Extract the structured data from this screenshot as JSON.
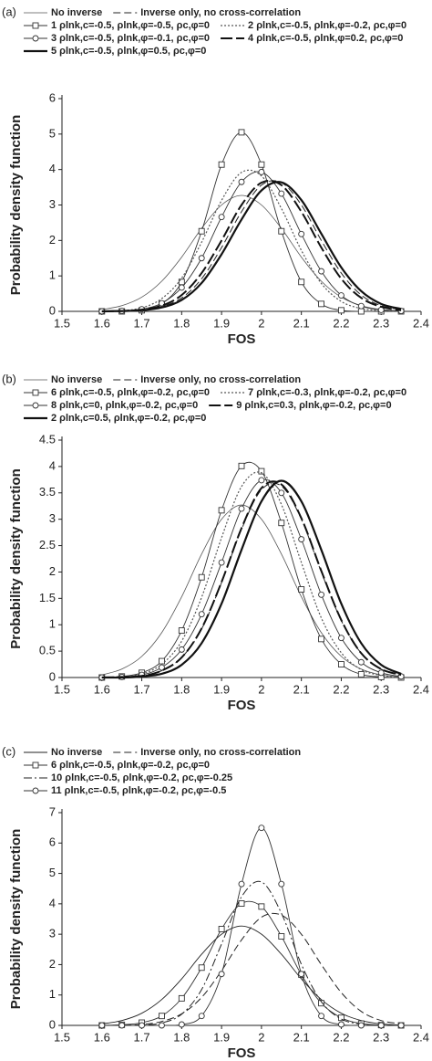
{
  "chart_data": [
    {
      "type": "line",
      "panel_label": "(a)",
      "x_label": "FOS",
      "y_label": "Probability density function",
      "x": [
        1.6,
        1.65,
        1.7,
        1.75,
        1.8,
        1.85,
        1.9,
        1.95,
        2,
        2.05,
        2.1,
        2.15,
        2.2,
        2.25,
        2.3,
        2.35
      ],
      "xlim": [
        1.5,
        2.4
      ],
      "xticks": [
        1.5,
        1.6,
        1.7,
        1.8,
        1.9,
        2,
        2.1,
        2.2,
        2.3,
        2.4
      ],
      "ylim": [
        0,
        6
      ],
      "yticks": [
        0,
        1,
        2,
        3,
        4,
        5,
        6
      ],
      "series": [
        {
          "name": "No inverse",
          "color": "#555555",
          "style": "solid",
          "width": 0.8,
          "marker": null,
          "values": [
            0.05,
            0.16,
            0.4,
            0.85,
            1.53,
            2.34,
            3,
            3.27,
            3,
            2.34,
            1.53,
            0.85,
            0.4,
            0.16,
            0.05,
            0.01
          ]
        },
        {
          "name": "Inverse only, no cross-correlation",
          "color": "#222222",
          "style": "dashed",
          "width": 1,
          "marker": null,
          "values": [
            0,
            0.01,
            0.03,
            0.13,
            0.38,
            0.92,
            1.8,
            2.81,
            3.56,
            3.63,
            3,
            2,
            1.08,
            0.46,
            0.16,
            0.05
          ]
        },
        {
          "name": "1 ρlnk,c=-0.5, ρlnk,φ=-0.5, ρc,φ=0",
          "color": "#333333",
          "style": "solid",
          "width": 0.9,
          "marker": "square",
          "values": [
            0,
            0,
            0.03,
            0.21,
            0.83,
            2.26,
            4.14,
            5.05,
            4.14,
            2.26,
            0.83,
            0.21,
            0.03,
            0,
            0,
            0
          ]
        },
        {
          "name": "2 ρlnk,c=-0.5, ρlnk,φ=-0.2, ρc,φ=0",
          "color": "#555555",
          "style": "dotted",
          "width": 1.2,
          "marker": null,
          "values": [
            0,
            0.02,
            0.1,
            0.36,
            0.94,
            1.95,
            3.13,
            3.92,
            3.82,
            2.9,
            1.72,
            0.79,
            0.28,
            0.08,
            0.02,
            0
          ]
        },
        {
          "name": "3 ρlnk,c=-0.5, ρlnk,φ=-0.1, ρc,φ=0",
          "color": "#333333",
          "style": "solid",
          "width": 0.9,
          "marker": "circle",
          "values": [
            0,
            0.01,
            0.06,
            0.23,
            0.67,
            1.5,
            2.66,
            3.65,
            3.93,
            3.32,
            2.18,
            1.13,
            0.45,
            0.15,
            0.04,
            0.01
          ]
        },
        {
          "name": "4 ρlnk,c=-0.5, ρlnk,φ=0.2, ρc,φ=0",
          "color": "#111111",
          "style": "longdash",
          "width": 2,
          "marker": null,
          "values": [
            0,
            0.01,
            0.05,
            0.16,
            0.46,
            1.08,
            2,
            3,
            3.63,
            3.56,
            2.81,
            1.8,
            0.92,
            0.38,
            0.13,
            0.03
          ]
        },
        {
          "name": "5 ρlnk,c=-0.5, ρlnk,φ=0.5, ρc,φ=0",
          "color": "#111111",
          "style": "solid",
          "width": 2.2,
          "marker": null,
          "values": [
            0,
            0.01,
            0.03,
            0.11,
            0.32,
            0.8,
            1.61,
            2.59,
            3.41,
            3.64,
            3.14,
            2.19,
            1.24,
            0.57,
            0.21,
            0.07
          ]
        }
      ]
    },
    {
      "type": "line",
      "panel_label": "(b)",
      "x_label": "FOS",
      "y_label": "Probability density function",
      "x": [
        1.6,
        1.65,
        1.7,
        1.75,
        1.8,
        1.85,
        1.9,
        1.95,
        2,
        2.05,
        2.1,
        2.15,
        2.2,
        2.25,
        2.3,
        2.35
      ],
      "xlim": [
        1.5,
        2.4
      ],
      "xticks": [
        1.5,
        1.6,
        1.7,
        1.8,
        1.9,
        2,
        2.1,
        2.2,
        2.3,
        2.4
      ],
      "ylim": [
        0,
        4.5
      ],
      "yticks": [
        0,
        0.5,
        1,
        1.5,
        2,
        2.5,
        3,
        3.5,
        4,
        4.5
      ],
      "series": [
        {
          "name": "No inverse",
          "color": "#555555",
          "style": "solid",
          "width": 0.8,
          "marker": null,
          "values": [
            0.05,
            0.16,
            0.4,
            0.85,
            1.53,
            2.34,
            3,
            3.27,
            3,
            2.34,
            1.53,
            0.85,
            0.4,
            0.16,
            0.05,
            0.01
          ]
        },
        {
          "name": "Inverse only, no cross-correlation",
          "color": "#222222",
          "style": "dashed",
          "width": 1,
          "marker": null,
          "values": [
            0,
            0.01,
            0.03,
            0.13,
            0.38,
            0.92,
            1.8,
            2.81,
            3.56,
            3.63,
            3,
            2,
            1.08,
            0.46,
            0.16,
            0.05
          ]
        },
        {
          "name": "6 ρlnk,c=-0.5, ρlnk,φ=-0.2, ρc,φ=0",
          "color": "#333333",
          "style": "solid",
          "width": 0.9,
          "marker": "square",
          "values": [
            0,
            0.02,
            0.09,
            0.31,
            0.89,
            1.9,
            3.17,
            4.01,
            3.91,
            2.93,
            1.67,
            0.73,
            0.25,
            0.06,
            0.01,
            0
          ]
        },
        {
          "name": "7 ρlnk,c=-0.3, ρlnk,φ=-0.2, ρc,φ=0",
          "color": "#555555",
          "style": "dotted",
          "width": 1.2,
          "marker": null,
          "values": [
            0,
            0.02,
            0.07,
            0.25,
            0.69,
            1.52,
            2.65,
            3.62,
            3.88,
            3.28,
            2.18,
            1.13,
            0.47,
            0.15,
            0.04,
            0.01
          ]
        },
        {
          "name": "8 ρlnk,c=0, ρlnk,φ=-0.2, ρc,φ=0",
          "color": "#333333",
          "style": "solid",
          "width": 0.9,
          "marker": "circle",
          "values": [
            0,
            0.01,
            0.05,
            0.19,
            0.53,
            1.2,
            2.18,
            3.2,
            3.74,
            3.5,
            2.62,
            1.57,
            0.75,
            0.29,
            0.09,
            0.02
          ]
        },
        {
          "name": "9 ρlnk,c=0.3, ρlnk,φ=-0.2, ρc,φ=0",
          "color": "#111111",
          "style": "longdash",
          "width": 2,
          "marker": null,
          "values": [
            0,
            0.01,
            0.03,
            0.13,
            0.38,
            0.93,
            1.81,
            2.83,
            3.59,
            3.66,
            3.02,
            2.02,
            1.09,
            0.46,
            0.16,
            0.05
          ]
        },
        {
          "name": "2 ρlnk,c=0.5, ρlnk,φ=-0.2, ρc,φ=0",
          "color": "#111111",
          "style": "solid",
          "width": 2.2,
          "marker": null,
          "values": [
            0,
            0,
            0.02,
            0.07,
            0.24,
            0.65,
            1.4,
            2.42,
            3.34,
            3.73,
            3.34,
            2.42,
            1.4,
            0.65,
            0.24,
            0.07
          ]
        }
      ]
    },
    {
      "type": "line",
      "panel_label": "(c)",
      "x_label": "FOS",
      "y_label": "Probability density function",
      "x": [
        1.6,
        1.65,
        1.7,
        1.75,
        1.8,
        1.85,
        1.9,
        1.95,
        2,
        2.05,
        2.1,
        2.15,
        2.2,
        2.25,
        2.3,
        2.35
      ],
      "xlim": [
        1.5,
        2.4
      ],
      "xticks": [
        1.5,
        1.6,
        1.7,
        1.8,
        1.9,
        2,
        2.1,
        2.2,
        2.3,
        2.4
      ],
      "ylim": [
        0,
        7
      ],
      "yticks": [
        0,
        1,
        2,
        3,
        4,
        5,
        6,
        7
      ],
      "series": [
        {
          "name": "No inverse",
          "color": "#222222",
          "style": "solid",
          "width": 0.9,
          "marker": null,
          "values": [
            0.05,
            0.16,
            0.4,
            0.85,
            1.53,
            2.34,
            3,
            3.27,
            3,
            2.34,
            1.53,
            0.85,
            0.4,
            0.16,
            0.05,
            0.01
          ]
        },
        {
          "name": "Inverse only, no cross-correlation",
          "color": "#222222",
          "style": "dashed",
          "width": 1,
          "marker": null,
          "values": [
            0,
            0.01,
            0.03,
            0.13,
            0.38,
            0.92,
            1.8,
            2.81,
            3.56,
            3.63,
            3,
            2,
            1.08,
            0.46,
            0.16,
            0.05
          ]
        },
        {
          "name": "6 ρlnk,c=-0.5, ρlnk,φ=-0.2, ρc,φ=0",
          "color": "#333333",
          "style": "solid",
          "width": 0.9,
          "marker": "square",
          "values": [
            0,
            0.02,
            0.09,
            0.31,
            0.89,
            1.9,
            3.17,
            4.01,
            3.91,
            2.93,
            1.67,
            0.73,
            0.25,
            0.06,
            0.01,
            0
          ]
        },
        {
          "name": "10 ρlnk,c=-0.5, ρlnk,φ=-0.2, ρc,φ=-0.25",
          "color": "#222222",
          "style": "dashdot",
          "width": 1,
          "marker": null,
          "values": [
            0,
            0,
            0.01,
            0.08,
            0.37,
            1.18,
            2.68,
            4.23,
            4.72,
            3.69,
            2.01,
            0.78,
            0.21,
            0.04,
            0,
            0
          ]
        },
        {
          "name": "11 ρlnk,c=-0.5, ρlnk,φ=-0.2, ρc,φ=-0.5",
          "color": "#333333",
          "style": "solid",
          "width": 0.9,
          "marker": "circle",
          "values": [
            0,
            0,
            0,
            0,
            0.03,
            0.31,
            1.69,
            4.65,
            6.5,
            4.65,
            1.69,
            0.31,
            0.03,
            0,
            0,
            0
          ]
        }
      ]
    }
  ]
}
